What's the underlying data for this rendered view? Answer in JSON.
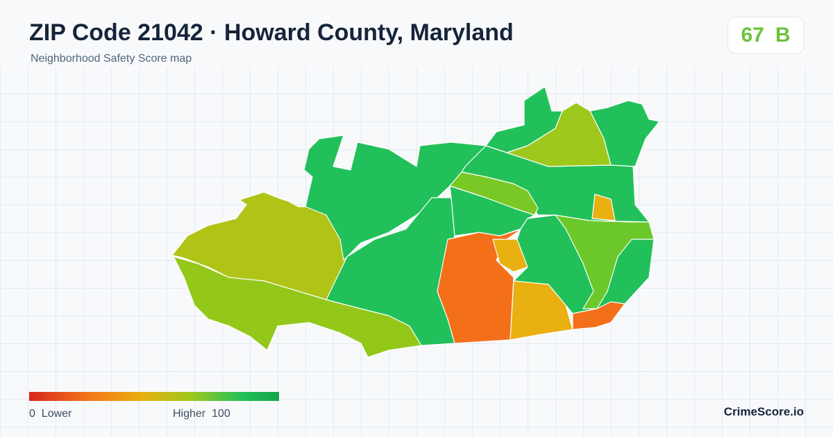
{
  "header": {
    "title": "ZIP Code 21042 · Howard County, Maryland",
    "subtitle": "Neighborhood Safety Score map"
  },
  "score": {
    "value": 67,
    "grade": "B"
  },
  "legend": {
    "min": 0,
    "min_label": "Lower",
    "max_label": "Higher",
    "max": 100
  },
  "brand": "CrimeScore.io"
}
